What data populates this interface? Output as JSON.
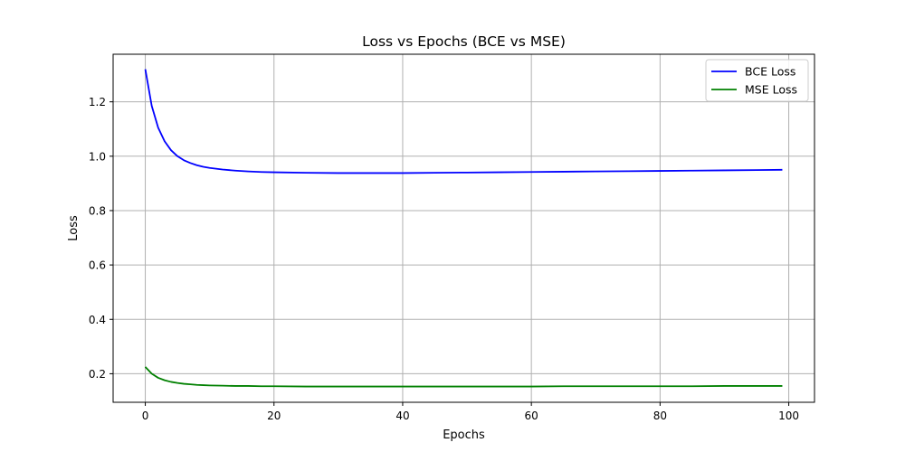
{
  "chart_data": {
    "type": "line",
    "title": "Loss vs Epochs (BCE vs MSE)",
    "xlabel": "Epochs",
    "ylabel": "Loss",
    "xlim": [
      -5,
      104
    ],
    "ylim": [
      0.095,
      1.375
    ],
    "xticks": [
      0,
      20,
      40,
      60,
      80,
      100
    ],
    "yticks": [
      0.2,
      0.4,
      0.6,
      0.8,
      1.0,
      1.2
    ],
    "ytick_labels": [
      "0.2",
      "0.4",
      "0.6",
      "0.8",
      "1.0",
      "1.2"
    ],
    "grid": true,
    "legend_position": "top-right",
    "series": [
      {
        "name": "BCE Loss",
        "color": "#0000ff",
        "x": [
          0,
          1,
          2,
          3,
          4,
          5,
          6,
          7,
          8,
          9,
          10,
          12,
          14,
          16,
          18,
          20,
          25,
          30,
          35,
          40,
          45,
          50,
          55,
          60,
          65,
          70,
          75,
          80,
          85,
          90,
          95,
          99
        ],
        "values": [
          1.32,
          1.185,
          1.105,
          1.055,
          1.022,
          1.0,
          0.985,
          0.975,
          0.967,
          0.961,
          0.957,
          0.951,
          0.947,
          0.944,
          0.942,
          0.941,
          0.939,
          0.938,
          0.938,
          0.938,
          0.939,
          0.94,
          0.941,
          0.942,
          0.943,
          0.944,
          0.945,
          0.946,
          0.947,
          0.948,
          0.949,
          0.95
        ]
      },
      {
        "name": "MSE Loss",
        "color": "#008000",
        "x": [
          0,
          1,
          2,
          3,
          4,
          5,
          6,
          7,
          8,
          9,
          10,
          12,
          14,
          16,
          18,
          20,
          25,
          30,
          35,
          40,
          45,
          50,
          55,
          60,
          65,
          70,
          75,
          80,
          85,
          90,
          95,
          99
        ],
        "values": [
          0.225,
          0.2,
          0.185,
          0.176,
          0.17,
          0.166,
          0.163,
          0.161,
          0.159,
          0.158,
          0.157,
          0.156,
          0.155,
          0.155,
          0.154,
          0.154,
          0.153,
          0.153,
          0.153,
          0.153,
          0.153,
          0.153,
          0.153,
          0.153,
          0.154,
          0.154,
          0.154,
          0.154,
          0.154,
          0.155,
          0.155,
          0.155
        ]
      }
    ]
  }
}
